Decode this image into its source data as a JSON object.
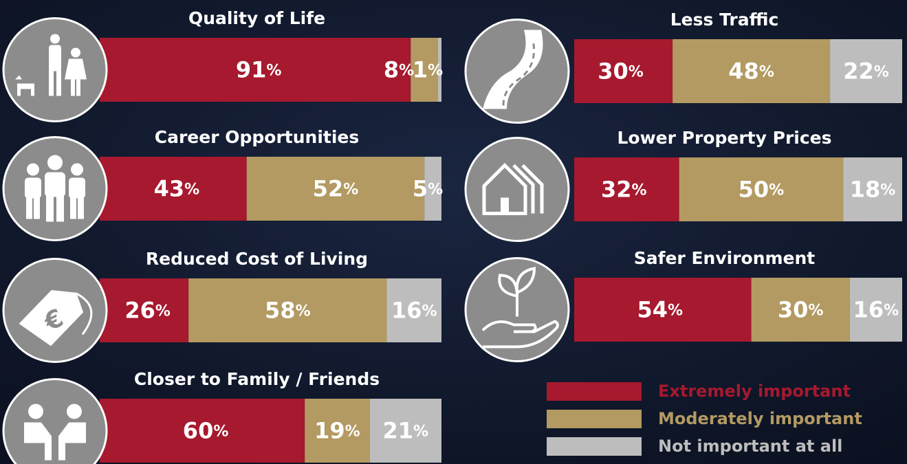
{
  "chart_data": {
    "type": "stacked-bar",
    "categories": [
      "Quality of Life",
      "Career Opportunities",
      "Reduced Cost of Living",
      "Closer to Family / Friends",
      "Less Traffic",
      "Lower Property Prices",
      "Safer Environment"
    ],
    "series": [
      {
        "name": "Extremely important",
        "color": "#a6192e",
        "values": [
          91,
          43,
          26,
          60,
          30,
          32,
          54
        ],
        "value_labels": [
          "91%",
          "43%",
          "26%",
          "60%",
          "30%",
          "32%",
          "54%"
        ]
      },
      {
        "name": "Moderately important",
        "color": "#b39a62",
        "values": [
          8,
          52,
          58,
          19,
          48,
          50,
          30
        ],
        "value_labels": [
          "8%",
          "52%",
          "58%",
          "19%",
          "48%",
          "50%",
          "30%"
        ]
      },
      {
        "name": "Not important at all",
        "color": "#bdbdbd",
        "values": [
          1,
          5,
          16,
          21,
          22,
          18,
          16
        ],
        "value_labels": [
          "1%",
          "5%",
          "16%",
          "21%",
          "22%",
          "18%",
          "16%"
        ]
      }
    ],
    "xlim": [
      0,
      100
    ]
  }
}
